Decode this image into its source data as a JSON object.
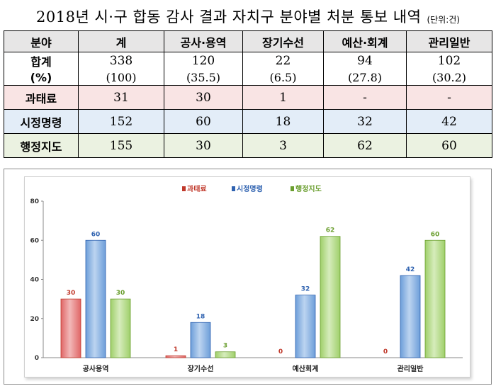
{
  "title": {
    "main": "2018년 시·구 합동 감사 결과 자치구 분야별 처분 통보 내역",
    "unit": "(단위:건)"
  },
  "table": {
    "headers": [
      "분야",
      "계",
      "공사·용역",
      "장기수선",
      "예산·회계",
      "관리일반"
    ],
    "rows": {
      "sum": {
        "label": "합계",
        "cells": [
          "338",
          "120",
          "22",
          "94",
          "102"
        ]
      },
      "pct": {
        "label": "(%)",
        "cells": [
          "(100)",
          "(35.5)",
          "(6.5)",
          "(27.8)",
          "(30.2)"
        ]
      },
      "fine": {
        "label": "과태료",
        "cells": [
          "31",
          "30",
          "1",
          "-",
          "-"
        ]
      },
      "order": {
        "label": "시정명령",
        "cells": [
          "152",
          "60",
          "18",
          "32",
          "42"
        ]
      },
      "guide": {
        "label": "행정지도",
        "cells": [
          "155",
          "30",
          "3",
          "62",
          "60"
        ]
      }
    }
  },
  "colors": {
    "fine": "#e06666",
    "fine_dark": "#c0392b",
    "order": "#6d9ed9",
    "order_dark": "#2f62b0",
    "guide": "#9fcf6a",
    "guide_dark": "#6a9e2e"
  },
  "chart_data": {
    "type": "bar",
    "categories": [
      "공사용역",
      "장기수선",
      "예산회계",
      "관리일반"
    ],
    "series": [
      {
        "name": "과태료",
        "values": [
          30,
          1,
          0,
          0
        ]
      },
      {
        "name": "시정명령",
        "values": [
          60,
          18,
          32,
          42
        ]
      },
      {
        "name": "행정지도",
        "values": [
          30,
          3,
          62,
          60
        ]
      }
    ],
    "ylim": [
      0,
      80
    ],
    "yticks": [
      0,
      20,
      40,
      60,
      80
    ],
    "legend": "top-center",
    "grid": false
  }
}
